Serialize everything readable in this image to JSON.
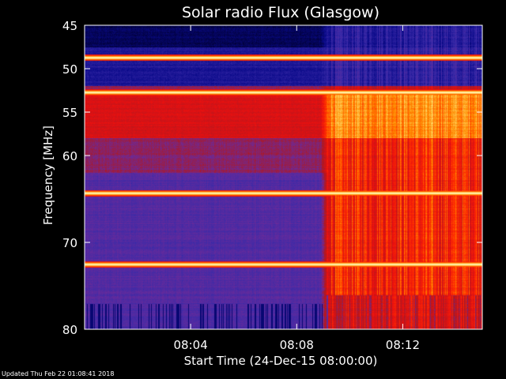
{
  "chart_data": {
    "type": "heatmap",
    "title": "Solar radio Flux (Glasgow)",
    "xlabel": "Start Time (24-Dec-15 08:00:00)",
    "ylabel": "Frequency [MHz]",
    "x_unit": "minutes after 08:00:00",
    "xlim": [
      0,
      15
    ],
    "ylim": [
      45,
      80
    ],
    "y_inverted": true,
    "x_ticks": [
      {
        "value": 4,
        "label": "08:04"
      },
      {
        "value": 8,
        "label": "08:08"
      },
      {
        "value": 12,
        "label": "08:12"
      }
    ],
    "y_ticks": [
      {
        "value": 45,
        "label": "45"
      },
      {
        "value": 50,
        "label": "50"
      },
      {
        "value": 55,
        "label": "55"
      },
      {
        "value": 60,
        "label": "60"
      },
      {
        "value": 70,
        "label": "70"
      },
      {
        "value": 80,
        "label": "80"
      }
    ],
    "event_onset_minute": 8.9,
    "colormap": [
      "#000033",
      "#0a0a8a",
      "#3a2aa8",
      "#6a2a9a",
      "#b01820",
      "#e81010",
      "#ff3000",
      "#ff8a00",
      "#ffe070",
      "#ffffe0"
    ],
    "background_level": {
      "before_onset": [
        {
          "from": 45,
          "to": 47.5,
          "level": 0.05
        },
        {
          "from": 47.5,
          "to": 52,
          "level": 0.15
        },
        {
          "from": 52,
          "to": 53,
          "level": 0.4
        },
        {
          "from": 53,
          "to": 58,
          "level": 0.52
        },
        {
          "from": 58,
          "to": 62,
          "level": 0.38
        },
        {
          "from": 62,
          "to": 80,
          "level": 0.28
        }
      ],
      "after_onset": [
        {
          "from": 45,
          "to": 47.5,
          "level": 0.18
        },
        {
          "from": 47.5,
          "to": 52,
          "level": 0.2
        },
        {
          "from": 52,
          "to": 53,
          "level": 0.5
        },
        {
          "from": 53,
          "to": 58,
          "level": 0.78
        },
        {
          "from": 58,
          "to": 80,
          "level": 0.62
        }
      ]
    },
    "bright_lines_mhz": [
      48.7,
      52.7,
      64.3,
      72.5
    ]
  },
  "footer": {
    "updated": "Updated Thu Feb 22 01:08:41 2018"
  }
}
